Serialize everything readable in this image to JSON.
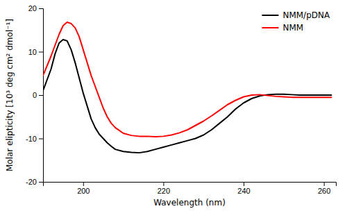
{
  "chart_data": {
    "type": "line",
    "xlabel": "Wavelength (nm)",
    "ylabel": "Molar elipticity [10³ deg cm² dmol⁻¹]",
    "xlim": [
      190,
      263
    ],
    "ylim": [
      -20,
      20
    ],
    "xticks": [
      200,
      220,
      240,
      260
    ],
    "yticks": [
      -20,
      -10,
      0,
      10,
      20
    ],
    "legend": "upper right",
    "series": [
      {
        "name": "NMM/pDNA",
        "color": "#000000",
        "x": [
          190,
          192,
          193,
          194,
          195,
          196,
          197,
          198,
          199,
          200,
          201,
          202,
          203,
          204,
          205,
          206,
          207,
          208,
          210,
          212,
          214,
          216,
          218,
          220,
          222,
          224,
          226,
          228,
          230,
          232,
          234,
          236,
          238,
          240,
          242,
          244,
          246,
          248,
          250,
          252,
          254,
          256,
          258,
          260,
          262
        ],
        "values": [
          1.0,
          6.0,
          9.5,
          12.0,
          12.8,
          12.5,
          10.5,
          7.5,
          4.0,
          0.5,
          -2.5,
          -5.5,
          -7.5,
          -9.0,
          -10.0,
          -11.0,
          -11.8,
          -12.5,
          -13.0,
          -13.2,
          -13.3,
          -13.0,
          -12.5,
          -12.0,
          -11.5,
          -11.0,
          -10.5,
          -10.0,
          -9.2,
          -8.0,
          -6.5,
          -5.0,
          -3.2,
          -1.8,
          -0.8,
          -0.2,
          0.1,
          0.2,
          0.2,
          0.1,
          0.0,
          0.0,
          0.0,
          0.0,
          0.0
        ]
      },
      {
        "name": "NMM",
        "color": "#ff0000",
        "x": [
          190,
          192,
          194,
          195,
          196,
          197,
          198,
          199,
          200,
          201,
          202,
          203,
          204,
          205,
          206,
          207,
          208,
          210,
          212,
          214,
          216,
          218,
          220,
          222,
          224,
          226,
          228,
          230,
          232,
          234,
          236,
          238,
          240,
          242,
          244,
          246,
          248,
          250,
          252,
          254,
          256,
          258,
          260,
          262
        ],
        "values": [
          4.5,
          9.0,
          14.0,
          16.0,
          16.8,
          16.5,
          15.5,
          13.5,
          10.5,
          7.5,
          4.5,
          2.0,
          -0.5,
          -3.0,
          -5.0,
          -6.5,
          -7.5,
          -8.8,
          -9.3,
          -9.5,
          -9.5,
          -9.6,
          -9.5,
          -9.2,
          -8.7,
          -8.0,
          -7.0,
          -6.0,
          -4.8,
          -3.5,
          -2.2,
          -1.2,
          -0.4,
          0.0,
          0.1,
          -0.1,
          -0.3,
          -0.4,
          -0.5,
          -0.5,
          -0.5,
          -0.5,
          -0.5,
          -0.5
        ]
      }
    ]
  }
}
